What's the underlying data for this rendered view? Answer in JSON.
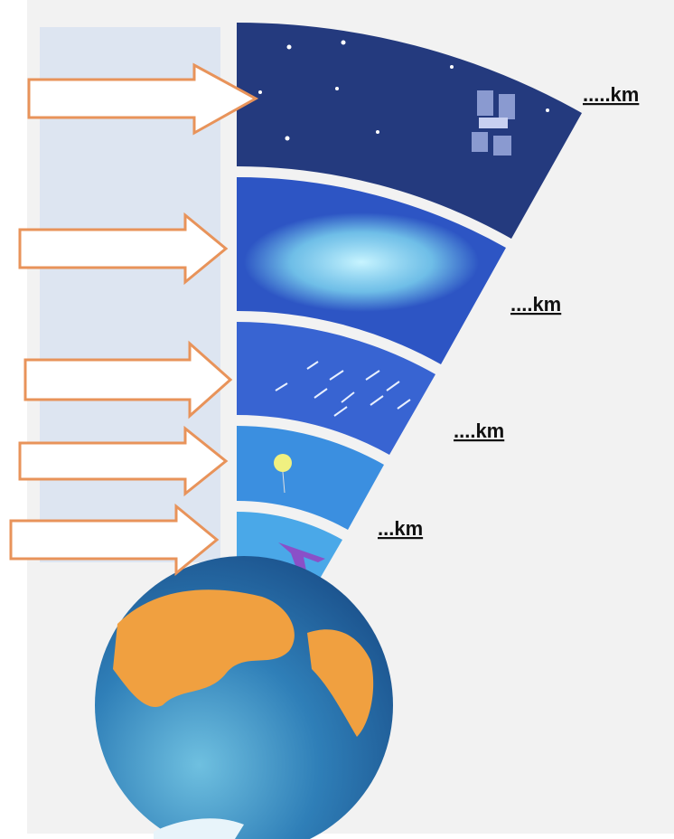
{
  "layers": [
    {
      "label": ".....km"
    },
    {
      "label": "....km"
    },
    {
      "label": "....km"
    },
    {
      "label": "...km"
    }
  ]
}
